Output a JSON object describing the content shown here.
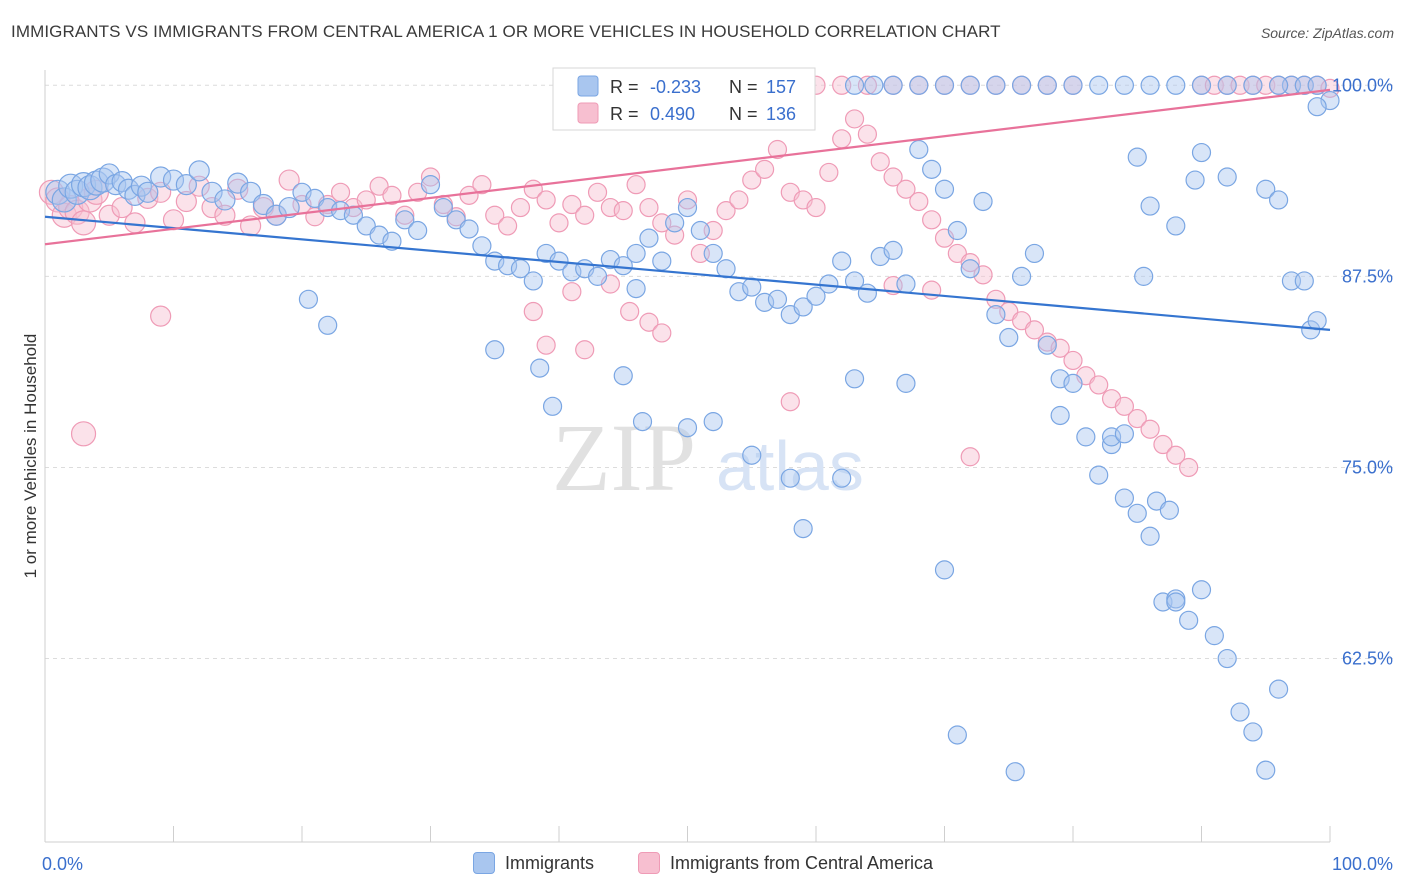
{
  "title": "IMMIGRANTS VS IMMIGRANTS FROM CENTRAL AMERICA 1 OR MORE VEHICLES IN HOUSEHOLD CORRELATION CHART",
  "source": "Source: ZipAtlas.com",
  "watermark": {
    "zip": "ZIP",
    "atlas": "atlas"
  },
  "colors": {
    "blue_fill": "#a9c6ef",
    "blue_stroke": "#7aa6e3",
    "blue_line": "#3575d0",
    "pink_fill": "#f7bfd0",
    "pink_stroke": "#ef9bb6",
    "pink_line": "#e8729a",
    "value_text": "#3a6fcd",
    "grid": "#dcdcdc"
  },
  "stats_legend": [
    {
      "r_label": "R =",
      "r_value": "-0.233",
      "n_label": "N =",
      "n_value": "157"
    },
    {
      "r_label": "R =",
      "r_value": "0.490",
      "n_label": "N =",
      "n_value": "136"
    }
  ],
  "bottom_legend": [
    "Immigrants",
    "Immigrants from Central America"
  ],
  "chart_data": {
    "type": "scatter",
    "xlabel": "",
    "ylabel": "1 or more Vehicles in Household",
    "xlim": [
      0,
      100
    ],
    "ylim": [
      50.5,
      101
    ],
    "x_tick_labels": [
      {
        "value": 0,
        "label": "0.0%"
      },
      {
        "value": 100,
        "label": "100.0%"
      }
    ],
    "y_ticks": [
      {
        "value": 100,
        "label": "100.0%"
      },
      {
        "value": 87.5,
        "label": "87.5%"
      },
      {
        "value": 75,
        "label": "75.0%"
      },
      {
        "value": 62.5,
        "label": "62.5%"
      }
    ],
    "grid": true,
    "legend_position": "top-center",
    "series": [
      {
        "name": "Immigrants",
        "r": -0.233,
        "n": 157,
        "trend": [
          [
            0,
            91.4
          ],
          [
            100,
            84.0
          ]
        ],
        "points": [
          [
            1,
            93
          ],
          [
            1.5,
            92.5
          ],
          [
            2,
            93.4
          ],
          [
            2.5,
            93
          ],
          [
            3,
            93.5
          ],
          [
            3.5,
            93.3
          ],
          [
            4,
            93.6
          ],
          [
            4.5,
            93.8
          ],
          [
            5,
            94.2
          ],
          [
            5.5,
            93.5
          ],
          [
            6,
            93.7
          ],
          [
            6.5,
            93.2
          ],
          [
            7,
            92.8
          ],
          [
            7.5,
            93.4
          ],
          [
            8,
            93
          ],
          [
            9,
            94
          ],
          [
            10,
            93.8
          ],
          [
            11,
            93.5
          ],
          [
            12,
            94.4
          ],
          [
            13,
            93
          ],
          [
            14,
            92.5
          ],
          [
            15,
            93.6
          ],
          [
            16,
            93
          ],
          [
            17,
            92.2
          ],
          [
            18,
            91.5
          ],
          [
            19,
            92
          ],
          [
            20,
            93
          ],
          [
            21,
            92.6
          ],
          [
            22,
            92
          ],
          [
            23,
            91.8
          ],
          [
            24,
            91.5
          ],
          [
            25,
            90.8
          ],
          [
            26,
            90.2
          ],
          [
            27,
            89.8
          ],
          [
            28,
            91.2
          ],
          [
            29,
            90.5
          ],
          [
            30,
            93.5
          ],
          [
            31,
            92
          ],
          [
            32,
            91.2
          ],
          [
            33,
            90.6
          ],
          [
            34,
            89.5
          ],
          [
            35,
            88.5
          ],
          [
            36,
            88.2
          ],
          [
            37,
            88
          ],
          [
            38,
            87.2
          ],
          [
            39,
            89
          ],
          [
            40,
            88.5
          ],
          [
            41,
            87.8
          ],
          [
            42,
            88
          ],
          [
            43,
            87.5
          ],
          [
            44,
            88.6
          ],
          [
            45,
            88.2
          ],
          [
            46,
            89
          ],
          [
            47,
            90
          ],
          [
            48,
            88.5
          ],
          [
            49,
            91
          ],
          [
            50,
            92
          ],
          [
            51,
            90.5
          ],
          [
            52,
            89
          ],
          [
            53,
            88
          ],
          [
            54,
            86.5
          ],
          [
            55,
            86.8
          ],
          [
            56,
            85.8
          ],
          [
            57,
            86
          ],
          [
            58,
            85
          ],
          [
            59,
            85.5
          ],
          [
            60,
            86.2
          ],
          [
            61,
            87
          ],
          [
            62,
            88.5
          ],
          [
            63,
            87.2
          ],
          [
            64,
            86.4
          ],
          [
            65,
            88.8
          ],
          [
            66,
            89.2
          ],
          [
            67,
            87
          ],
          [
            68,
            95.8
          ],
          [
            69,
            94.5
          ],
          [
            70,
            93.2
          ],
          [
            71,
            90.5
          ],
          [
            72,
            88
          ],
          [
            73,
            92.4
          ],
          [
            74,
            85
          ],
          [
            75,
            83.5
          ],
          [
            76,
            87.5
          ],
          [
            77,
            89
          ],
          [
            78,
            83
          ],
          [
            79,
            80.8
          ],
          [
            80,
            80.5
          ],
          [
            81,
            77
          ],
          [
            82,
            74.5
          ],
          [
            83,
            76.5
          ],
          [
            84,
            73
          ],
          [
            85,
            72
          ],
          [
            86,
            70.5
          ],
          [
            87,
            66.2
          ],
          [
            88,
            66.4
          ],
          [
            89,
            65
          ],
          [
            90,
            67
          ],
          [
            91,
            64
          ],
          [
            92,
            62.5
          ],
          [
            93,
            59
          ],
          [
            94,
            57.7
          ],
          [
            95,
            55.2
          ],
          [
            96,
            60.5
          ],
          [
            97,
            100
          ],
          [
            98,
            100
          ],
          [
            99,
            100
          ],
          [
            100,
            99
          ],
          [
            20.5,
            86
          ],
          [
            22,
            84.3
          ],
          [
            35,
            82.7
          ],
          [
            38.5,
            81.5
          ],
          [
            39.5,
            79
          ],
          [
            45,
            81
          ],
          [
            46,
            86.7
          ],
          [
            46.5,
            78
          ],
          [
            50,
            77.6
          ],
          [
            52,
            78
          ],
          [
            55,
            75.8
          ],
          [
            58,
            74.3
          ],
          [
            59,
            71
          ],
          [
            62,
            74.3
          ],
          [
            63,
            80.8
          ],
          [
            67,
            80.5
          ],
          [
            70,
            68.3
          ],
          [
            71,
            57.5
          ],
          [
            75.5,
            55.1
          ],
          [
            79,
            78.4
          ],
          [
            83,
            77
          ],
          [
            84,
            77.2
          ],
          [
            85,
            95.3
          ],
          [
            86,
            92.1
          ],
          [
            88,
            90.8
          ],
          [
            89.5,
            93.8
          ],
          [
            90,
            95.6
          ],
          [
            92,
            94
          ],
          [
            95,
            93.2
          ],
          [
            96,
            92.5
          ],
          [
            97,
            87.2
          ],
          [
            98,
            87.2
          ],
          [
            98.5,
            84
          ],
          [
            99,
            84.6
          ],
          [
            85.5,
            87.5
          ],
          [
            86.5,
            72.8
          ],
          [
            87.5,
            72.2
          ],
          [
            88,
            66.2
          ],
          [
            63,
            100
          ],
          [
            64.5,
            100
          ],
          [
            66,
            100
          ],
          [
            68,
            100
          ],
          [
            70,
            100
          ],
          [
            72,
            100
          ],
          [
            74,
            100
          ],
          [
            76,
            100
          ],
          [
            78,
            100
          ],
          [
            80,
            100
          ],
          [
            82,
            100
          ],
          [
            84,
            100
          ],
          [
            86,
            100
          ],
          [
            88,
            100
          ],
          [
            90,
            100
          ],
          [
            92,
            100
          ],
          [
            94,
            100
          ],
          [
            96,
            100
          ],
          [
            99,
            98.6
          ]
        ]
      },
      {
        "name": "Immigrants from Central America",
        "r": 0.49,
        "n": 136,
        "trend": [
          [
            0,
            89.6
          ],
          [
            100,
            99.7
          ]
        ],
        "points": [
          [
            0.5,
            93
          ],
          [
            1,
            92.5
          ],
          [
            1.5,
            91.5
          ],
          [
            2,
            92
          ],
          [
            2.5,
            91.7
          ],
          [
            3,
            91
          ],
          [
            3.5,
            92.5
          ],
          [
            4,
            93
          ],
          [
            5,
            91.5
          ],
          [
            6,
            92
          ],
          [
            7,
            91
          ],
          [
            8,
            92.6
          ],
          [
            9,
            93
          ],
          [
            10,
            91.2
          ],
          [
            11,
            92.4
          ],
          [
            12,
            93.4
          ],
          [
            13,
            92
          ],
          [
            14,
            91.5
          ],
          [
            15,
            93.2
          ],
          [
            16,
            90.8
          ],
          [
            17,
            92
          ],
          [
            18,
            91.5
          ],
          [
            19,
            93.8
          ],
          [
            20,
            92.2
          ],
          [
            21,
            91.4
          ],
          [
            22,
            92.2
          ],
          [
            23,
            93
          ],
          [
            24,
            92
          ],
          [
            25,
            92.5
          ],
          [
            26,
            93.4
          ],
          [
            27,
            92.8
          ],
          [
            28,
            91.5
          ],
          [
            29,
            93
          ],
          [
            30,
            94
          ],
          [
            31,
            92.2
          ],
          [
            32,
            91.4
          ],
          [
            33,
            92.8
          ],
          [
            34,
            93.5
          ],
          [
            35,
            91.5
          ],
          [
            36,
            90.8
          ],
          [
            37,
            92
          ],
          [
            38,
            93.2
          ],
          [
            39,
            92.5
          ],
          [
            40,
            91
          ],
          [
            41,
            92.2
          ],
          [
            42,
            91.5
          ],
          [
            43,
            93
          ],
          [
            44,
            92
          ],
          [
            45,
            91.8
          ],
          [
            46,
            93.5
          ],
          [
            47,
            92
          ],
          [
            48,
            91
          ],
          [
            49,
            90.2
          ],
          [
            50,
            92.5
          ],
          [
            51,
            89
          ],
          [
            52,
            90.5
          ],
          [
            53,
            91.8
          ],
          [
            54,
            92.5
          ],
          [
            55,
            93.8
          ],
          [
            56,
            94.5
          ],
          [
            57,
            95.8
          ],
          [
            58,
            93
          ],
          [
            59,
            92.5
          ],
          [
            60,
            92
          ],
          [
            61,
            94.3
          ],
          [
            62,
            96.5
          ],
          [
            63,
            97.8
          ],
          [
            64,
            96.8
          ],
          [
            65,
            95
          ],
          [
            66,
            94
          ],
          [
            67,
            93.2
          ],
          [
            68,
            92.4
          ],
          [
            69,
            91.2
          ],
          [
            70,
            90
          ],
          [
            71,
            89
          ],
          [
            72,
            88.4
          ],
          [
            73,
            87.6
          ],
          [
            74,
            86
          ],
          [
            75,
            85.2
          ],
          [
            76,
            84.6
          ],
          [
            77,
            84
          ],
          [
            78,
            83.2
          ],
          [
            79,
            82.8
          ],
          [
            80,
            82
          ],
          [
            81,
            81
          ],
          [
            82,
            80.4
          ],
          [
            83,
            79.5
          ],
          [
            84,
            79
          ],
          [
            85,
            78.2
          ],
          [
            86,
            77.5
          ],
          [
            87,
            76.5
          ],
          [
            88,
            75.8
          ],
          [
            89,
            75
          ],
          [
            90,
            100
          ],
          [
            91,
            100
          ],
          [
            92,
            100
          ],
          [
            93,
            100
          ],
          [
            94,
            100
          ],
          [
            95,
            100
          ],
          [
            96,
            100
          ],
          [
            97,
            100
          ],
          [
            98,
            100
          ],
          [
            99,
            100
          ],
          [
            100,
            99.8
          ],
          [
            3,
            77.2
          ],
          [
            9,
            84.9
          ],
          [
            38,
            85.2
          ],
          [
            39,
            83
          ],
          [
            41,
            86.5
          ],
          [
            42,
            82.7
          ],
          [
            44,
            87
          ],
          [
            45.5,
            85.2
          ],
          [
            47,
            84.5
          ],
          [
            48,
            83.8
          ],
          [
            58,
            79.3
          ],
          [
            66,
            86.9
          ],
          [
            69,
            86.6
          ],
          [
            72,
            75.7
          ],
          [
            50,
            100
          ],
          [
            52,
            100
          ],
          [
            54,
            100
          ],
          [
            56,
            100
          ],
          [
            58,
            100
          ],
          [
            60,
            100
          ],
          [
            62,
            100
          ],
          [
            64,
            100
          ],
          [
            66,
            100
          ],
          [
            68,
            100
          ],
          [
            70,
            100
          ],
          [
            72,
            100
          ],
          [
            74,
            100
          ],
          [
            76,
            100
          ],
          [
            78,
            100
          ],
          [
            80,
            100
          ]
        ]
      }
    ]
  }
}
